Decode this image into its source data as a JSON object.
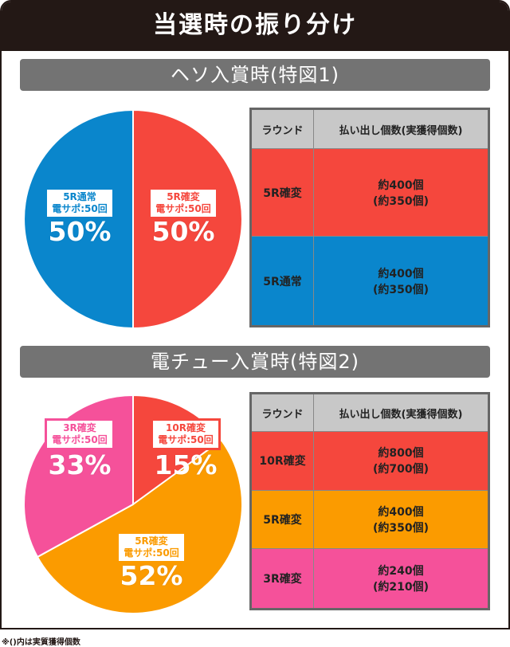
{
  "title": "当選時の振り分け",
  "footnote": "※()内は実質獲得個数",
  "colors": {
    "red": "#f5473d",
    "blue": "#0a86cc",
    "orange": "#fb9b00",
    "pink": "#f5519a"
  },
  "chart_data": [
    {
      "type": "pie",
      "title": "ヘソ入賞時(特図1)",
      "slices": [
        {
          "label": "5R確変",
          "sub": "電サポ:50回",
          "value": 50,
          "pct_label": "50%",
          "color": "#f5473d"
        },
        {
          "label": "5R通常",
          "sub": "電サポ:50回",
          "value": 50,
          "pct_label": "50%",
          "color": "#0a86cc"
        }
      ]
    },
    {
      "type": "pie",
      "title": "電チュー入賞時(特図2)",
      "slices": [
        {
          "label": "10R確変",
          "sub": "電サポ:50回",
          "value": 15,
          "pct_label": "15%",
          "color": "#f5473d"
        },
        {
          "label": "5R確変",
          "sub": "電サポ:50回",
          "value": 52,
          "pct_label": "52%",
          "color": "#fb9b00"
        },
        {
          "label": "3R確変",
          "sub": "電サポ:50回",
          "value": 33,
          "pct_label": "33%",
          "color": "#f5519a"
        }
      ]
    }
  ],
  "tables": [
    {
      "headers": [
        "ラウンド",
        "払い出し個数(実獲得個数)"
      ],
      "rows": [
        {
          "round": "5R確変",
          "payout": "約400個",
          "actual": "(約350個)",
          "color": "#f5473d"
        },
        {
          "round": "5R通常",
          "payout": "約400個",
          "actual": "(約350個)",
          "color": "#0a86cc"
        }
      ]
    },
    {
      "headers": [
        "ラウンド",
        "払い出し個数(実獲得個数)"
      ],
      "rows": [
        {
          "round": "10R確変",
          "payout": "約800個",
          "actual": "(約700個)",
          "color": "#f5473d"
        },
        {
          "round": "5R確変",
          "payout": "約400個",
          "actual": "(約350個)",
          "color": "#fb9b00"
        },
        {
          "round": "3R確変",
          "payout": "約240個",
          "actual": "(約210個)",
          "color": "#f5519a"
        }
      ]
    }
  ]
}
